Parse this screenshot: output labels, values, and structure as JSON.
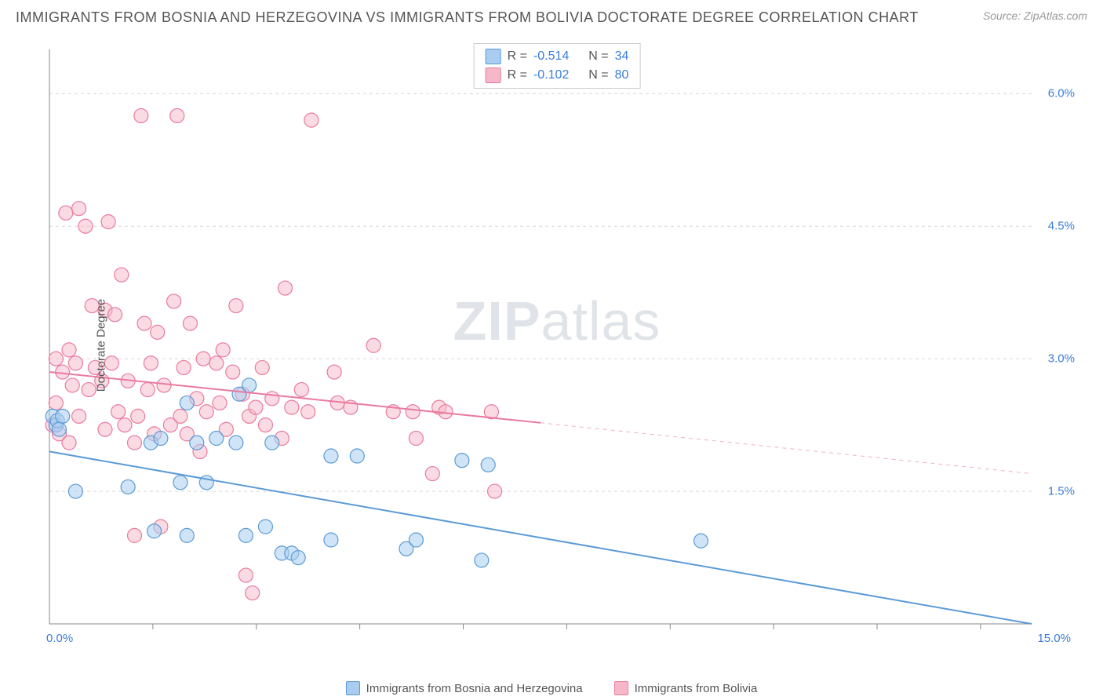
{
  "title": "IMMIGRANTS FROM BOSNIA AND HERZEGOVINA VS IMMIGRANTS FROM BOLIVIA DOCTORATE DEGREE CORRELATION CHART",
  "source": "Source: ZipAtlas.com",
  "watermark_a": "ZIP",
  "watermark_b": "atlas",
  "chart": {
    "type": "scatter",
    "ylabel": "Doctorate Degree",
    "x_origin_label": "0.0%",
    "x_max_label": "15.0%",
    "xlim": [
      0,
      15
    ],
    "ylim": [
      0,
      6.5
    ],
    "y_ticks": [
      1.5,
      3.0,
      4.5,
      6.0
    ],
    "y_tick_labels": [
      "1.5%",
      "3.0%",
      "4.5%",
      "6.0%"
    ],
    "x_minor_ticks": [
      1.58,
      3.16,
      4.74,
      6.32,
      7.9,
      9.48,
      11.06,
      12.64,
      14.22
    ],
    "grid_color": "#d6d6d6",
    "axis_color": "#888888",
    "background_color": "#ffffff",
    "marker_radius": 9,
    "marker_stroke_width": 1.2,
    "trend_line_width": 2,
    "series_a": {
      "label": "Immigrants from Bosnia and Herzegovina",
      "fill": "#a9cdf0",
      "stroke": "#5b9bd5",
      "fill_opacity": 0.55,
      "R": "-0.514",
      "N": "34",
      "trend": {
        "x1": 0,
        "y1": 1.95,
        "x2": 15,
        "y2": 0.0,
        "dash_from_x": null
      },
      "points": [
        [
          0.05,
          2.35
        ],
        [
          0.1,
          2.25
        ],
        [
          0.12,
          2.3
        ],
        [
          0.15,
          2.2
        ],
        [
          0.2,
          2.35
        ],
        [
          0.4,
          1.5
        ],
        [
          1.2,
          1.55
        ],
        [
          1.55,
          2.05
        ],
        [
          1.6,
          1.05
        ],
        [
          1.7,
          2.1
        ],
        [
          2.0,
          1.6
        ],
        [
          2.1,
          1.0
        ],
        [
          2.1,
          2.5
        ],
        [
          2.25,
          2.05
        ],
        [
          2.4,
          1.6
        ],
        [
          2.55,
          2.1
        ],
        [
          2.85,
          2.05
        ],
        [
          2.9,
          2.6
        ],
        [
          3.0,
          1.0
        ],
        [
          3.05,
          2.7
        ],
        [
          3.3,
          1.1
        ],
        [
          3.4,
          2.05
        ],
        [
          3.55,
          0.8
        ],
        [
          3.7,
          0.8
        ],
        [
          3.8,
          0.75
        ],
        [
          4.3,
          1.9
        ],
        [
          4.3,
          0.95
        ],
        [
          4.7,
          1.9
        ],
        [
          5.45,
          0.85
        ],
        [
          5.6,
          0.95
        ],
        [
          6.3,
          1.85
        ],
        [
          6.6,
          0.72
        ],
        [
          6.7,
          1.8
        ],
        [
          9.95,
          0.94
        ]
      ]
    },
    "series_b": {
      "label": "Immigrants from Bolivia",
      "fill": "#f6b8c8",
      "stroke": "#ea7aa0",
      "fill_opacity": 0.5,
      "R": "-0.102",
      "N": "80",
      "trend": {
        "x1": 0,
        "y1": 2.85,
        "x2": 15,
        "y2": 1.7,
        "dash_from_x": 7.5
      },
      "points": [
        [
          0.05,
          2.25
        ],
        [
          0.1,
          2.5
        ],
        [
          0.1,
          3.0
        ],
        [
          0.15,
          2.15
        ],
        [
          0.2,
          2.85
        ],
        [
          0.25,
          4.65
        ],
        [
          0.3,
          2.05
        ],
        [
          0.3,
          3.1
        ],
        [
          0.35,
          2.7
        ],
        [
          0.4,
          2.95
        ],
        [
          0.45,
          2.35
        ],
        [
          0.45,
          4.7
        ],
        [
          0.55,
          4.5
        ],
        [
          0.6,
          2.65
        ],
        [
          0.65,
          3.6
        ],
        [
          0.7,
          2.9
        ],
        [
          0.8,
          2.75
        ],
        [
          0.85,
          2.2
        ],
        [
          0.85,
          3.55
        ],
        [
          0.9,
          4.55
        ],
        [
          0.95,
          2.95
        ],
        [
          1.0,
          3.5
        ],
        [
          1.05,
          2.4
        ],
        [
          1.1,
          3.95
        ],
        [
          1.15,
          2.25
        ],
        [
          1.2,
          2.75
        ],
        [
          1.3,
          2.05
        ],
        [
          1.35,
          2.35
        ],
        [
          1.4,
          5.75
        ],
        [
          1.45,
          3.4
        ],
        [
          1.5,
          2.65
        ],
        [
          1.55,
          2.95
        ],
        [
          1.6,
          2.15
        ],
        [
          1.65,
          3.3
        ],
        [
          1.7,
          1.1
        ],
        [
          1.75,
          2.7
        ],
        [
          1.85,
          2.25
        ],
        [
          1.9,
          3.65
        ],
        [
          1.95,
          5.75
        ],
        [
          2.0,
          2.35
        ],
        [
          2.05,
          2.9
        ],
        [
          2.1,
          2.15
        ],
        [
          2.15,
          3.4
        ],
        [
          2.25,
          2.55
        ],
        [
          2.3,
          1.95
        ],
        [
          2.35,
          3.0
        ],
        [
          2.4,
          2.4
        ],
        [
          2.55,
          2.95
        ],
        [
          2.6,
          2.5
        ],
        [
          2.65,
          3.1
        ],
        [
          2.7,
          2.2
        ],
        [
          2.8,
          2.85
        ],
        [
          2.85,
          3.6
        ],
        [
          2.95,
          2.6
        ],
        [
          3.0,
          0.55
        ],
        [
          3.05,
          2.35
        ],
        [
          3.1,
          0.35
        ],
        [
          3.15,
          2.45
        ],
        [
          3.25,
          2.9
        ],
        [
          3.3,
          2.25
        ],
        [
          3.4,
          2.55
        ],
        [
          3.55,
          2.1
        ],
        [
          3.6,
          3.8
        ],
        [
          3.7,
          2.45
        ],
        [
          3.85,
          2.65
        ],
        [
          3.95,
          2.4
        ],
        [
          4.0,
          5.7
        ],
        [
          4.35,
          2.85
        ],
        [
          4.4,
          2.5
        ],
        [
          4.6,
          2.45
        ],
        [
          4.95,
          3.15
        ],
        [
          5.25,
          2.4
        ],
        [
          5.55,
          2.4
        ],
        [
          5.6,
          2.1
        ],
        [
          5.85,
          1.7
        ],
        [
          5.95,
          2.45
        ],
        [
          6.05,
          2.4
        ],
        [
          6.75,
          2.4
        ],
        [
          6.8,
          1.5
        ],
        [
          1.3,
          1.0
        ]
      ]
    }
  },
  "stats_labels": {
    "R": "R =",
    "N": "N ="
  },
  "legend_labels": {
    "a": "Immigrants from Bosnia and Herzegovina",
    "b": "Immigrants from Bolivia"
  }
}
